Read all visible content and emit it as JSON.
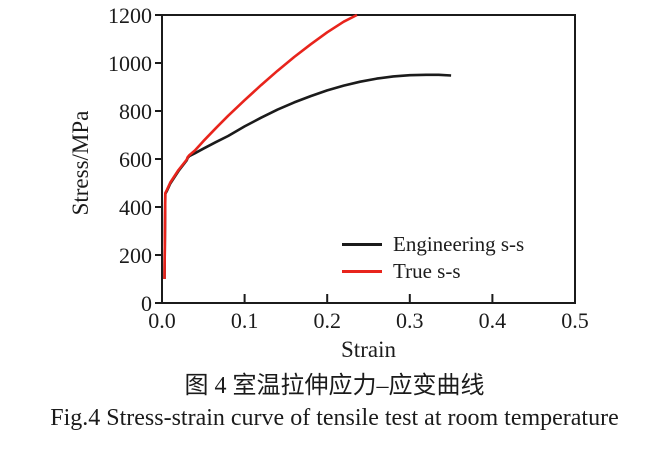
{
  "figure": {
    "caption_zh": "图 4  室温拉伸应力–应变曲线",
    "caption_en": "Fig.4  Stress-strain curve of tensile test at room temperature"
  },
  "chart_data": {
    "type": "line",
    "title": "",
    "xlabel": "Strain",
    "ylabel": "Stress/MPa",
    "xlim": [
      0,
      0.5
    ],
    "ylim": [
      0,
      1200
    ],
    "x_tick_values": [
      0,
      0.1,
      0.2,
      0.3,
      0.4,
      0.5
    ],
    "x_tick_labels": [
      "0.0",
      "0.1",
      "0.2",
      "0.3",
      "0.4",
      "0.5"
    ],
    "y_tick_values": [
      0,
      200,
      400,
      600,
      800,
      1000,
      1200
    ],
    "y_tick_labels": [
      "0",
      "200",
      "400",
      "600",
      "800",
      "1000",
      "1200"
    ],
    "grid": false,
    "legend_position": "inside-lower-right",
    "axis_color": "#1b1b1b",
    "series": [
      {
        "name": "Engineering s-s",
        "color": "#1b1b1b",
        "points": [
          [
            0.003,
            100
          ],
          [
            0.004,
            455
          ],
          [
            0.006,
            468
          ],
          [
            0.01,
            498
          ],
          [
            0.02,
            550
          ],
          [
            0.03,
            595
          ],
          [
            0.031,
            604
          ],
          [
            0.033,
            612
          ],
          [
            0.04,
            624
          ],
          [
            0.05,
            643
          ],
          [
            0.065,
            670
          ],
          [
            0.08,
            696
          ],
          [
            0.1,
            736
          ],
          [
            0.12,
            772
          ],
          [
            0.14,
            806
          ],
          [
            0.16,
            836
          ],
          [
            0.18,
            862
          ],
          [
            0.2,
            886
          ],
          [
            0.22,
            906
          ],
          [
            0.24,
            922
          ],
          [
            0.26,
            935
          ],
          [
            0.28,
            944
          ],
          [
            0.3,
            949
          ],
          [
            0.32,
            951
          ],
          [
            0.335,
            951
          ],
          [
            0.35,
            948
          ]
        ]
      },
      {
        "name": "True s-s",
        "color": "#e8241c",
        "points": [
          [
            0.003,
            100
          ],
          [
            0.004,
            458
          ],
          [
            0.006,
            472
          ],
          [
            0.01,
            502
          ],
          [
            0.02,
            554
          ],
          [
            0.03,
            598
          ],
          [
            0.031,
            607
          ],
          [
            0.033,
            616
          ],
          [
            0.04,
            636
          ],
          [
            0.05,
            674
          ],
          [
            0.065,
            728
          ],
          [
            0.08,
            780
          ],
          [
            0.1,
            845
          ],
          [
            0.12,
            908
          ],
          [
            0.14,
            968
          ],
          [
            0.16,
            1025
          ],
          [
            0.18,
            1078
          ],
          [
            0.2,
            1128
          ],
          [
            0.22,
            1172
          ],
          [
            0.236,
            1200
          ]
        ]
      }
    ]
  }
}
